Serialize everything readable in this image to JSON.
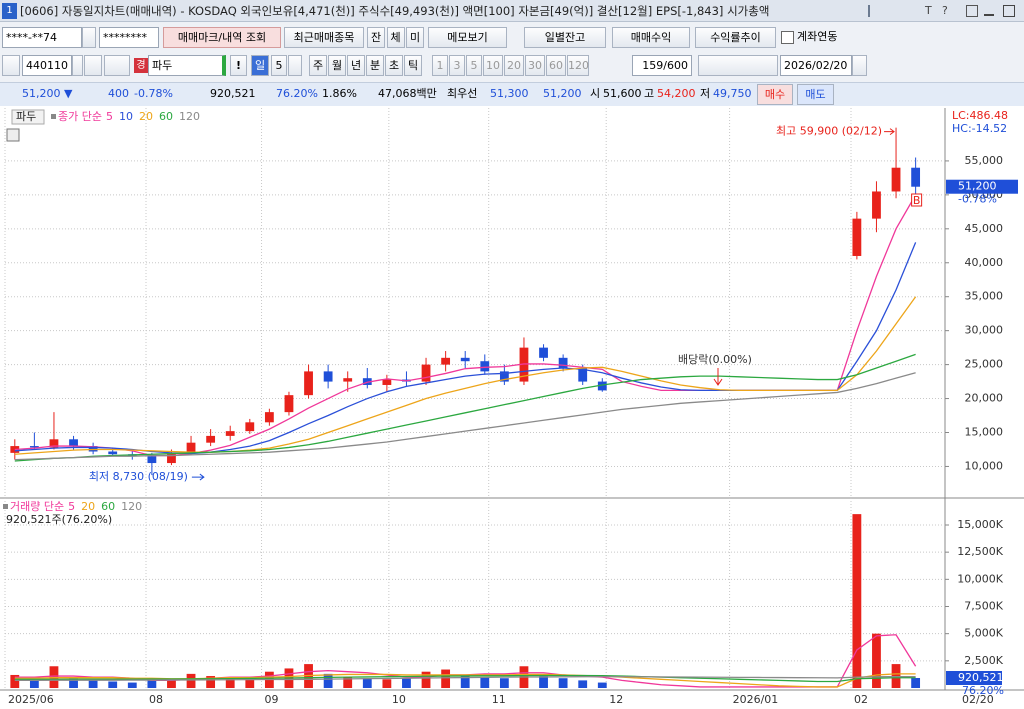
{
  "titlebar": {
    "icon": "1",
    "text": "[0606] 자동일지차트(매매내역) - KOSDAQ 외국인보유[4,471(천)] 주식수[49,493(천)] 액면[100] 자본금[49(억)] 결산[12월] EPS[-1,843] 시가총액",
    "buttons": [
      "T",
      "?"
    ]
  },
  "toolbar": {
    "account": "****-**74",
    "password": "********",
    "query": "매매마크/내역 조회",
    "recent": "최근매매종목",
    "tabs": [
      "잔",
      "체",
      "미"
    ],
    "memo": "메모보기",
    "daily": "일별잔고",
    "profit": "매매수익",
    "yield": "수익률추이",
    "link": "계좌연동"
  },
  "symbolbar": {
    "code": "440110",
    "marker": "경",
    "name": "파두",
    "bang": "!",
    "period": "일",
    "period_n": "5",
    "periods": [
      "주",
      "월",
      "년",
      "분",
      "초",
      "틱"
    ],
    "intervals": [
      "1",
      "3",
      "5",
      "10",
      "20",
      "30",
      "60",
      "120"
    ],
    "count": "159/600",
    "date": "2026/02/20"
  },
  "quote": {
    "price": "51,200 ▼",
    "change": "400",
    "rate": "-0.78%",
    "volume": "920,521",
    "volume_rate": "76.20%",
    "turnover": "1.86%",
    "amount": "47,068백만",
    "best": "최우선",
    "ask": "51,300",
    "bid": "51,200",
    "open_label": "시",
    "open": "51,600",
    "high_label": "고",
    "high": "54,200",
    "low_label": "저",
    "low": "49,750",
    "buy": "매수",
    "sell": "매도"
  },
  "chart_data": [
    {
      "type": "candlestick",
      "name": "파두",
      "legend_title": "종가 단순",
      "up_color": "#e8221b",
      "down_color": "#1f4fd8",
      "open": [
        12000,
        13000,
        12800,
        14000,
        13000,
        12200,
        11800,
        11500,
        10500,
        12000,
        13500,
        14500,
        15200,
        16500,
        18000,
        20500,
        24000,
        22500,
        23000,
        22000,
        22800,
        22500,
        25000,
        26000,
        25500,
        24000,
        22500,
        27500,
        26000,
        24500,
        22500,
        null,
        null,
        null,
        null,
        null,
        null,
        null,
        null,
        null,
        null,
        null,
        null,
        41000,
        46500,
        50500,
        54000
      ],
      "high": [
        14000,
        15000,
        18000,
        14500,
        13500,
        12800,
        12500,
        12000,
        12500,
        14500,
        15500,
        16000,
        17000,
        18500,
        21000,
        25000,
        25000,
        24000,
        24500,
        23500,
        24000,
        26000,
        27000,
        27000,
        26500,
        25000,
        29000,
        28000,
        26500,
        25000,
        23000,
        null,
        null,
        null,
        null,
        null,
        null,
        null,
        null,
        null,
        null,
        null,
        null,
        47500,
        52000,
        59900,
        55500
      ],
      "low": [
        11000,
        12500,
        12500,
        12500,
        11800,
        11500,
        11000,
        8730,
        10200,
        11800,
        13000,
        13800,
        14800,
        16000,
        17500,
        20000,
        21500,
        21000,
        21500,
        21000,
        21800,
        22000,
        24000,
        24500,
        23500,
        22000,
        22000,
        25500,
        24000,
        22000,
        21000,
        null,
        null,
        null,
        null,
        null,
        null,
        null,
        null,
        null,
        null,
        null,
        null,
        40500,
        44500,
        49500,
        49750
      ],
      "close": [
        13000,
        12800,
        14000,
        13000,
        12200,
        11800,
        11500,
        10500,
        12000,
        13500,
        14500,
        15200,
        16500,
        18000,
        20500,
        24000,
        22500,
        23000,
        22000,
        22800,
        22500,
        25000,
        26000,
        25500,
        24000,
        22500,
        27500,
        26000,
        24500,
        22500,
        21200,
        null,
        null,
        null,
        null,
        null,
        null,
        null,
        null,
        null,
        null,
        null,
        null,
        46500,
        50500,
        54000,
        51200
      ],
      "series": [
        {
          "name": "5",
          "color": "#f0389a",
          "values": [
            12500,
            12700,
            13000,
            13000,
            12900,
            12700,
            12300,
            11600,
            11600,
            11900,
            12400,
            13100,
            14300,
            15500,
            17000,
            18600,
            20000,
            21400,
            22400,
            22900,
            22600,
            23100,
            23700,
            24400,
            24600,
            24700,
            25100,
            25100,
            24900,
            24600,
            24300,
            22500,
            21800,
            21200,
            21200,
            21200,
            21200,
            21200,
            21200,
            21200,
            21200,
            21200,
            21200,
            30000,
            38000,
            45000,
            50000
          ]
        },
        {
          "name": "10",
          "color": "#2b50d8",
          "values": [
            12300,
            12500,
            12700,
            12800,
            12800,
            12700,
            12500,
            12200,
            12000,
            11900,
            12100,
            12500,
            13000,
            13800,
            15000,
            16300,
            17500,
            18800,
            20000,
            21000,
            21800,
            22300,
            22800,
            23300,
            23600,
            23700,
            24000,
            24300,
            24500,
            24300,
            23800,
            23000,
            22300,
            21700,
            21300,
            21200,
            21200,
            21200,
            21200,
            21200,
            21200,
            21200,
            21200,
            25500,
            30000,
            36000,
            43000
          ]
        },
        {
          "name": "20",
          "color": "#eda51a",
          "values": [
            11800,
            12000,
            12200,
            12400,
            12500,
            12500,
            12400,
            12300,
            12200,
            12100,
            12100,
            12200,
            12400,
            12700,
            13300,
            14000,
            15000,
            16000,
            17000,
            18000,
            19000,
            20000,
            20800,
            21500,
            22200,
            22800,
            23300,
            23800,
            24200,
            24500,
            24600,
            24000,
            23300,
            22600,
            22000,
            21600,
            21300,
            21200,
            21200,
            21200,
            21200,
            21200,
            21200,
            23500,
            27000,
            31000,
            35000
          ]
        },
        {
          "name": "60",
          "color": "#2ca840",
          "values": [
            10800,
            11000,
            11200,
            11300,
            11500,
            11600,
            11700,
            11800,
            11900,
            12000,
            12100,
            12200,
            12300,
            12500,
            12800,
            13200,
            13700,
            14300,
            14900,
            15500,
            16100,
            16700,
            17300,
            17900,
            18500,
            19100,
            19700,
            20300,
            20900,
            21500,
            22000,
            22400,
            22800,
            23000,
            23200,
            23300,
            23300,
            23200,
            23100,
            23000,
            22900,
            22800,
            22800,
            23500,
            24500,
            25500,
            26500
          ]
        },
        {
          "name": "120",
          "color": "#8a8a8a",
          "values": [
            11000,
            11100,
            11200,
            11300,
            11400,
            11500,
            11500,
            11600,
            11600,
            11700,
            11800,
            11900,
            12000,
            12100,
            12300,
            12500,
            12700,
            13000,
            13300,
            13600,
            14000,
            14400,
            14800,
            15200,
            15600,
            16000,
            16400,
            16800,
            17200,
            17600,
            18000,
            18400,
            18700,
            19000,
            19300,
            19500,
            19700,
            19900,
            20100,
            20300,
            20500,
            20700,
            20900,
            21500,
            22200,
            23000,
            23800
          ]
        }
      ],
      "xlim": [
        -0.5,
        47.5
      ],
      "xticks": [
        {
          "value": -0.5,
          "label": "2025/06"
        },
        {
          "value": 6.7,
          "label": "08"
        },
        {
          "value": 12.6,
          "label": "09"
        },
        {
          "value": 19.1,
          "label": "10"
        },
        {
          "value": 24.2,
          "label": "11"
        },
        {
          "value": 30.2,
          "label": "12"
        },
        {
          "value": 36.5,
          "label": "2026/01"
        },
        {
          "value": 42.7,
          "label": "02"
        }
      ],
      "x_end_label": "02/20",
      "ylim": [
        5500,
        62500
      ],
      "yticks": [
        {
          "value": 10000,
          "label": "10,000"
        },
        {
          "value": 15000,
          "label": "15,000"
        },
        {
          "value": 20000,
          "label": "20,000"
        },
        {
          "value": 25000,
          "label": "25,000"
        },
        {
          "value": 30000,
          "label": "30,000"
        },
        {
          "value": 35000,
          "label": "35,000"
        },
        {
          "value": 40000,
          "label": "40,000"
        },
        {
          "value": 45000,
          "label": "45,000"
        },
        {
          "value": 50000,
          "label": "50,000"
        },
        {
          "value": 55000,
          "label": "55,000"
        }
      ],
      "grid": true,
      "high_label": "최고 59,900 (02/12)",
      "low_label": "최저 8,730 (08/19)",
      "ex_dividend_label": "배당락(0.00%)",
      "buy_mark": "B",
      "lc_label": "LC:486.48",
      "hc_label": "HC:-14.52",
      "last_label": "51,200",
      "last_change_label": "-0.78%"
    },
    {
      "type": "bar",
      "legend_title": "거래량 단순",
      "status": "920,521주(76.20%)",
      "up_color": "#e8221b",
      "down_color": "#1f4fd8",
      "values": [
        1200,
        800,
        2000,
        900,
        700,
        600,
        500,
        900,
        800,
        1300,
        1100,
        900,
        1000,
        1500,
        1800,
        2200,
        1300,
        1000,
        900,
        800,
        900,
        1500,
        1700,
        1200,
        1000,
        900,
        2000,
        1200,
        900,
        700,
        500,
        null,
        null,
        null,
        null,
        null,
        null,
        null,
        null,
        null,
        null,
        null,
        null,
        16000,
        5000,
        2200,
        920.521
      ],
      "series": [
        {
          "name": "5",
          "color": "#f0389a",
          "values": [
            1000,
            1000,
            1100,
            1100,
            1000,
            1000,
            900,
            700,
            700,
            800,
            900,
            1000,
            1000,
            1100,
            1300,
            1500,
            1600,
            1500,
            1400,
            1200,
            1000,
            1000,
            1200,
            1200,
            1300,
            1300,
            1400,
            1400,
            1200,
            1100,
            1000,
            700,
            500,
            300,
            200,
            100,
            100,
            100,
            100,
            100,
            100,
            100,
            100,
            3500,
            4800,
            4900,
            2000
          ]
        },
        {
          "name": "20",
          "color": "#eda51a",
          "values": [
            900,
            900,
            950,
            950,
            950,
            950,
            900,
            900,
            850,
            850,
            900,
            950,
            950,
            1000,
            1050,
            1150,
            1200,
            1250,
            1250,
            1250,
            1200,
            1200,
            1200,
            1200,
            1200,
            1200,
            1250,
            1250,
            1200,
            1150,
            1100,
            1000,
            900,
            800,
            700,
            600,
            500,
            400,
            300,
            200,
            150,
            100,
            100,
            900,
            1200,
            1300,
            1300
          ]
        },
        {
          "name": "60",
          "color": "#2ca840",
          "values": [
            800,
            800,
            800,
            820,
            820,
            820,
            820,
            830,
            830,
            840,
            850,
            860,
            880,
            900,
            920,
            950,
            980,
            1000,
            1020,
            1040,
            1060,
            1080,
            1100,
            1110,
            1120,
            1130,
            1140,
            1150,
            1150,
            1150,
            1140,
            1100,
            1050,
            1000,
            950,
            900,
            850,
            800,
            750,
            700,
            650,
            600,
            600,
            850,
            900,
            950,
            950
          ]
        },
        {
          "name": "120",
          "color": "#8a8a8a",
          "values": [
            700,
            700,
            710,
            710,
            720,
            720,
            730,
            730,
            740,
            740,
            750,
            760,
            770,
            780,
            790,
            800,
            820,
            840,
            860,
            880,
            900,
            920,
            940,
            960,
            980,
            1000,
            1010,
            1020,
            1030,
            1040,
            1050,
            1040,
            1030,
            1020,
            1010,
            1000,
            990,
            980,
            970,
            960,
            950,
            940,
            930,
            1000,
            1030,
            1050,
            1050
          ]
        }
      ],
      "ylim": [
        0,
        17300
      ],
      "yticks": [
        {
          "value": 2500,
          "label": "2,500K"
        },
        {
          "value": 5000,
          "label": "5,000K"
        },
        {
          "value": 7500,
          "label": "7,500K"
        },
        {
          "value": 10000,
          "label": "10,000K"
        },
        {
          "value": 12500,
          "label": "12,500K"
        },
        {
          "value": 15000,
          "label": "15,000K"
        }
      ],
      "grid": true,
      "last_label": "920,521",
      "last_rate_label": "76.20%"
    }
  ]
}
